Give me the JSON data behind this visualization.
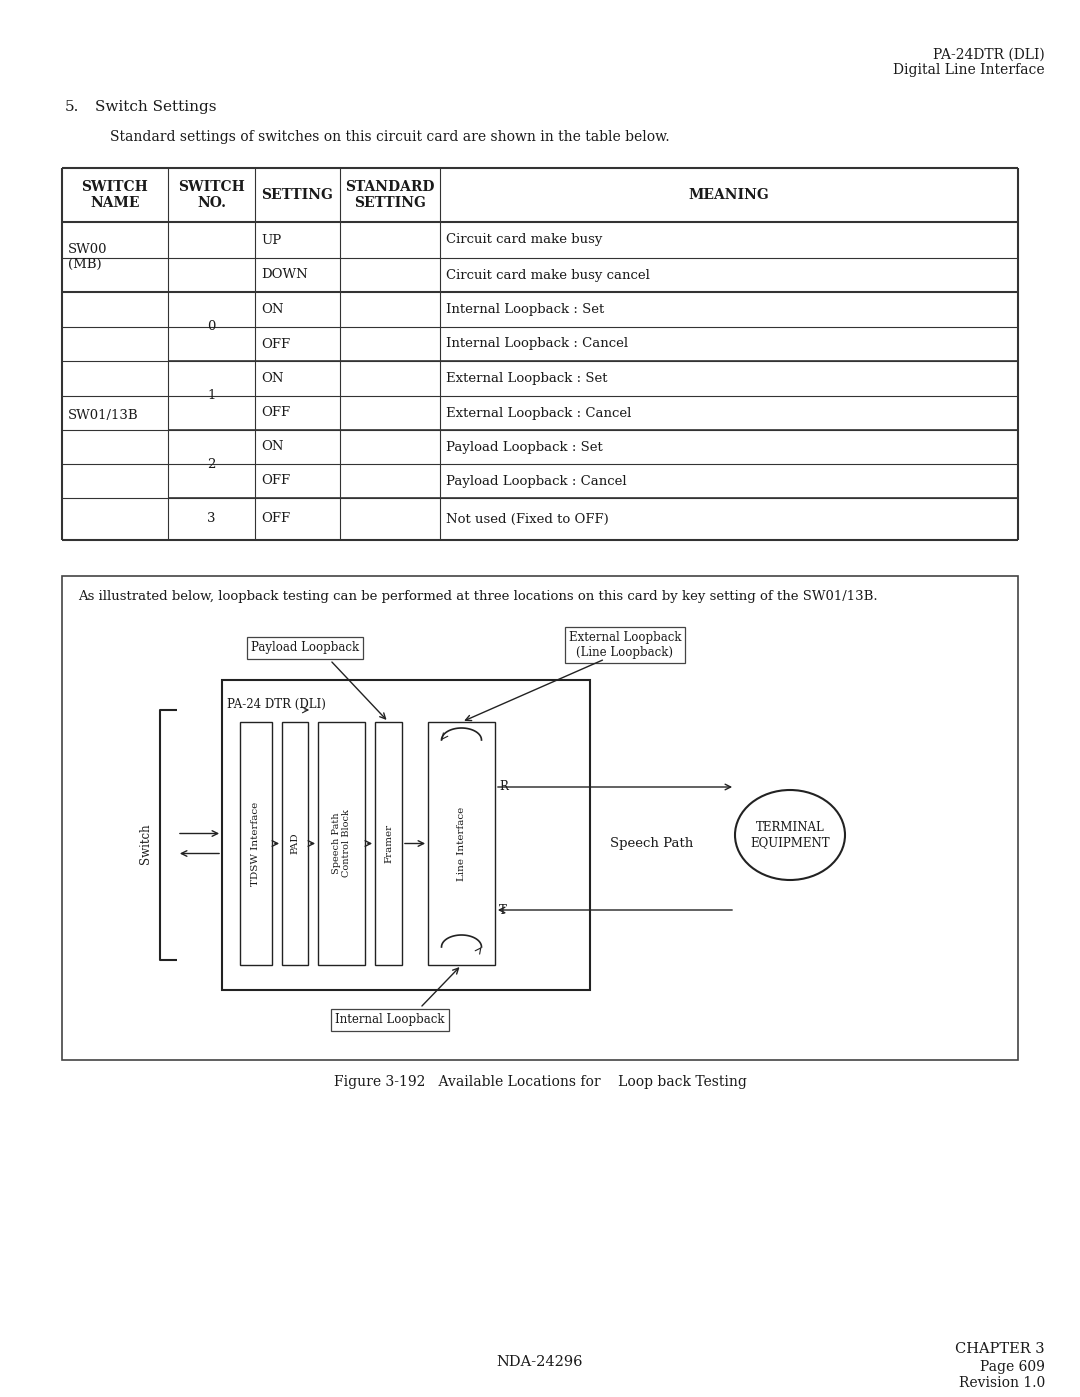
{
  "header_line1": "PA-24DTR (DLI)",
  "header_line2": "Digital Line Interface",
  "section_number": "5.",
  "section_title": "Switch Settings",
  "intro_text": "Standard settings of switches on this circuit card are shown in the table below.",
  "table_headers": [
    "SWITCH\nNAME",
    "SWITCH\nNO.",
    "SETTING",
    "STANDARD\nSETTING",
    "MEANING"
  ],
  "diagram_note": "As illustrated below, loopback testing can be performed at three locations on this card by key setting of the SW01/13B.",
  "figure_caption": "Figure 3-192   Available Locations for    Loop back Testing",
  "footer_left": "NDA-24296",
  "footer_right_line1": "CHAPTER 3",
  "footer_right_line2": "Page 609",
  "footer_right_line3": "Revision 1.0",
  "bg_color": "#ffffff",
  "text_color": "#1a1a1a"
}
